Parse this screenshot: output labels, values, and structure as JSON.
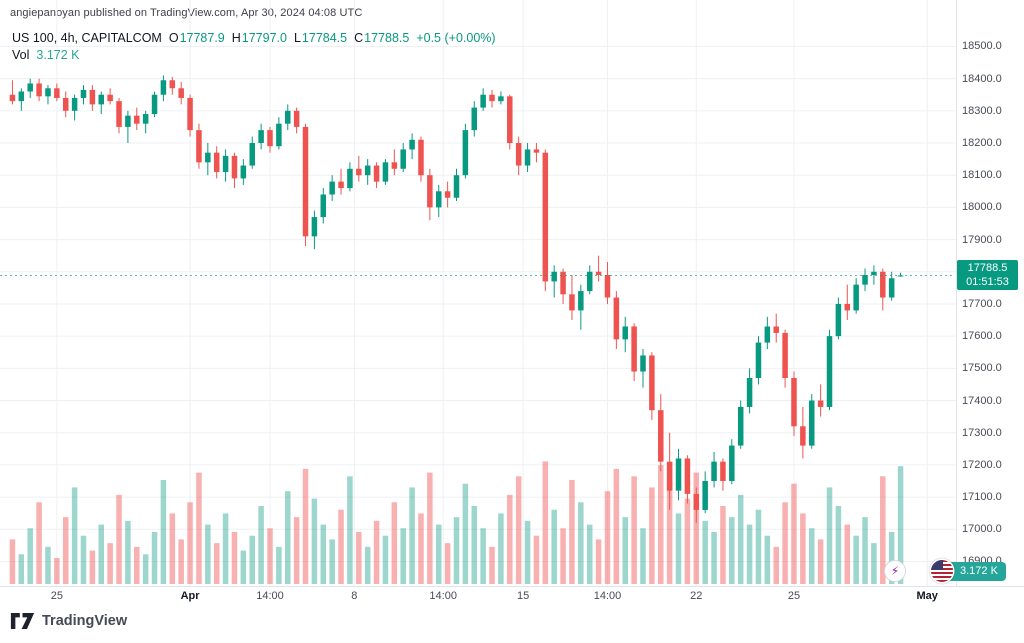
{
  "attribution": "angiepanoyan published on TradingView.com, Apr 30, 2024 04:08 UTC",
  "legend": {
    "symbol": "US 100, 4h, CAPITALCOM",
    "o_label": "O",
    "o_value": "17787.9",
    "h_label": "H",
    "h_value": "17797.0",
    "l_label": "L",
    "l_value": "17784.5",
    "c_label": "C",
    "c_value": "17788.5",
    "change": "+0.5 (+0.00%)",
    "vol_label": "Vol",
    "vol_value": "3.172 K"
  },
  "last_price_badge": {
    "price": "17788.5",
    "countdown": "01:51:53"
  },
  "volume_badge_value": "3.172 K",
  "footer": {
    "brand": "TradingView"
  },
  "icons": {
    "lightning": "⚡"
  },
  "colors": {
    "up": "#089981",
    "down": "#ef5350",
    "vol_up": "rgba(8,153,129,0.40)",
    "vol_down": "rgba(239,83,80,0.45)",
    "grid": "#eef0f4",
    "axis_border": "#e0e3eb",
    "badge_green": "#089981",
    "badge_teal": "#26a69a",
    "purple": "#8e24aa",
    "text_dark": "#131722"
  },
  "chart_data": {
    "type": "candlestick",
    "title": "US 100, 4h, CAPITALCOM",
    "interval": "4h",
    "last_price": 17788.5,
    "last_volume_k": 3.172,
    "ylim": [
      16830,
      18520
    ],
    "grid": true,
    "price_gridlines": [
      18500,
      18400,
      18300,
      18200,
      18100,
      18000,
      17900,
      17800,
      17700,
      17600,
      17500,
      17400,
      17300,
      17200,
      17100,
      17000,
      16900
    ],
    "time_ticks": [
      {
        "label": "25",
        "index": 5,
        "bold": false
      },
      {
        "label": "Apr",
        "index": 20,
        "bold": true
      },
      {
        "label": "14:00",
        "index": 29,
        "bold": false
      },
      {
        "label": "8",
        "index": 38.5,
        "bold": false
      },
      {
        "label": "14:00",
        "index": 48.5,
        "bold": false
      },
      {
        "label": "15",
        "index": 57.5,
        "bold": false
      },
      {
        "label": "14:00",
        "index": 67,
        "bold": false
      },
      {
        "label": "22",
        "index": 77,
        "bold": false
      },
      {
        "label": "25",
        "index": 88,
        "bold": false
      },
      {
        "label": "May",
        "index": 103,
        "bold": true
      }
    ],
    "columns": [
      "open",
      "high",
      "low",
      "close",
      "volume_k"
    ],
    "candles": [
      [
        18350,
        18395,
        18320,
        18330,
        1.2
      ],
      [
        18330,
        18370,
        18300,
        18360,
        0.8
      ],
      [
        18360,
        18400,
        18340,
        18385,
        1.5
      ],
      [
        18385,
        18400,
        18330,
        18345,
        2.2
      ],
      [
        18345,
        18380,
        18320,
        18370,
        1.0
      ],
      [
        18370,
        18385,
        18330,
        18340,
        0.7
      ],
      [
        18340,
        18360,
        18280,
        18300,
        1.8
      ],
      [
        18300,
        18350,
        18270,
        18340,
        2.6
      ],
      [
        18340,
        18380,
        18320,
        18365,
        1.3
      ],
      [
        18365,
        18380,
        18300,
        18320,
        0.9
      ],
      [
        18320,
        18360,
        18290,
        18350,
        1.6
      ],
      [
        18350,
        18370,
        18320,
        18330,
        1.1
      ],
      [
        18330,
        18340,
        18230,
        18250,
        2.4
      ],
      [
        18250,
        18300,
        18200,
        18285,
        1.7
      ],
      [
        18285,
        18310,
        18240,
        18260,
        1.0
      ],
      [
        18260,
        18300,
        18230,
        18290,
        0.8
      ],
      [
        18290,
        18360,
        18280,
        18350,
        1.4
      ],
      [
        18350,
        18410,
        18330,
        18395,
        2.8
      ],
      [
        18395,
        18405,
        18350,
        18370,
        1.9
      ],
      [
        18370,
        18390,
        18320,
        18340,
        1.2
      ],
      [
        18340,
        18350,
        18220,
        18240,
        2.2
      ],
      [
        18240,
        18260,
        18120,
        18140,
        3.0
      ],
      [
        18140,
        18200,
        18100,
        18170,
        1.6
      ],
      [
        18170,
        18190,
        18090,
        18110,
        1.1
      ],
      [
        18110,
        18180,
        18080,
        18160,
        1.9
      ],
      [
        18160,
        18170,
        18060,
        18090,
        1.4
      ],
      [
        18090,
        18150,
        18070,
        18130,
        0.9
      ],
      [
        18130,
        18220,
        18120,
        18200,
        1.3
      ],
      [
        18200,
        18260,
        18180,
        18240,
        2.1
      ],
      [
        18240,
        18250,
        18170,
        18190,
        1.5
      ],
      [
        18190,
        18280,
        18180,
        18260,
        1.0
      ],
      [
        18260,
        18320,
        18240,
        18300,
        2.5
      ],
      [
        18300,
        18310,
        18230,
        18250,
        1.8
      ],
      [
        18250,
        18260,
        17880,
        17910,
        3.1
      ],
      [
        17910,
        17990,
        17870,
        17970,
        2.3
      ],
      [
        17970,
        18060,
        17950,
        18040,
        1.6
      ],
      [
        18040,
        18100,
        18020,
        18080,
        1.2
      ],
      [
        18080,
        18120,
        18040,
        18060,
        2.0
      ],
      [
        18060,
        18140,
        18050,
        18120,
        2.9
      ],
      [
        18120,
        18160,
        18080,
        18100,
        1.4
      ],
      [
        18100,
        18150,
        18070,
        18130,
        1.0
      ],
      [
        18130,
        18140,
        18060,
        18080,
        1.7
      ],
      [
        18080,
        18150,
        18070,
        18140,
        1.3
      ],
      [
        18140,
        18180,
        18100,
        18120,
        2.2
      ],
      [
        18120,
        18200,
        18110,
        18180,
        1.5
      ],
      [
        18180,
        18230,
        18150,
        18210,
        2.6
      ],
      [
        18210,
        18220,
        18080,
        18100,
        1.9
      ],
      [
        18100,
        18120,
        17960,
        18000,
        3.0
      ],
      [
        18000,
        18070,
        17970,
        18050,
        1.6
      ],
      [
        18050,
        18080,
        18000,
        18030,
        1.1
      ],
      [
        18030,
        18120,
        18020,
        18100,
        1.8
      ],
      [
        18100,
        18260,
        18090,
        18240,
        2.7
      ],
      [
        18240,
        18330,
        18220,
        18310,
        2.1
      ],
      [
        18310,
        18370,
        18300,
        18350,
        1.5
      ],
      [
        18350,
        18365,
        18310,
        18330,
        1.0
      ],
      [
        18330,
        18360,
        18320,
        18345,
        1.9
      ],
      [
        18345,
        18350,
        18180,
        18200,
        2.4
      ],
      [
        18200,
        18220,
        18100,
        18130,
        2.9
      ],
      [
        18130,
        18200,
        18110,
        18180,
        1.7
      ],
      [
        18180,
        18200,
        18140,
        18170,
        1.3
      ],
      [
        18170,
        18180,
        17740,
        17770,
        3.3
      ],
      [
        17770,
        17820,
        17720,
        17800,
        2.0
      ],
      [
        17800,
        17810,
        17700,
        17730,
        1.5
      ],
      [
        17730,
        17790,
        17650,
        17680,
        2.8
      ],
      [
        17680,
        17760,
        17620,
        17740,
        2.2
      ],
      [
        17740,
        17820,
        17730,
        17800,
        1.6
      ],
      [
        17800,
        17850,
        17770,
        17790,
        1.2
      ],
      [
        17790,
        17830,
        17700,
        17720,
        2.5
      ],
      [
        17720,
        17740,
        17560,
        17590,
        3.1
      ],
      [
        17590,
        17660,
        17550,
        17630,
        1.8
      ],
      [
        17630,
        17640,
        17460,
        17490,
        2.9
      ],
      [
        17490,
        17560,
        17440,
        17540,
        1.5
      ],
      [
        17540,
        17550,
        17340,
        17370,
        2.6
      ],
      [
        17370,
        17420,
        17180,
        17210,
        3.2
      ],
      [
        17210,
        17300,
        17060,
        17120,
        2.8
      ],
      [
        17120,
        17250,
        17090,
        17220,
        1.9
      ],
      [
        17220,
        17230,
        17080,
        17110,
        2.3
      ],
      [
        17110,
        17130,
        17020,
        17060,
        3.0
      ],
      [
        17060,
        17180,
        17050,
        17150,
        1.7
      ],
      [
        17150,
        17240,
        17130,
        17210,
        1.4
      ],
      [
        17210,
        17220,
        17120,
        17150,
        2.1
      ],
      [
        17150,
        17280,
        17140,
        17260,
        1.8
      ],
      [
        17260,
        17400,
        17250,
        17380,
        2.4
      ],
      [
        17380,
        17500,
        17360,
        17470,
        1.6
      ],
      [
        17470,
        17600,
        17450,
        17580,
        2.0
      ],
      [
        17580,
        17660,
        17560,
        17630,
        1.3
      ],
      [
        17630,
        17670,
        17580,
        17610,
        1.0
      ],
      [
        17610,
        17620,
        17440,
        17470,
        2.2
      ],
      [
        17470,
        17490,
        17290,
        17320,
        2.7
      ],
      [
        17320,
        17380,
        17220,
        17260,
        1.9
      ],
      [
        17260,
        17420,
        17250,
        17400,
        1.5
      ],
      [
        17400,
        17450,
        17350,
        17380,
        1.2
      ],
      [
        17380,
        17620,
        17370,
        17600,
        2.6
      ],
      [
        17600,
        17720,
        17590,
        17700,
        2.1
      ],
      [
        17700,
        17760,
        17650,
        17680,
        1.6
      ],
      [
        17680,
        17780,
        17670,
        17760,
        1.3
      ],
      [
        17760,
        17810,
        17740,
        17790,
        1.8
      ],
      [
        17790,
        17820,
        17760,
        17800,
        1.1
      ],
      [
        17800,
        17810,
        17680,
        17720,
        2.9
      ],
      [
        17720,
        17800,
        17710,
        17780,
        1.4
      ],
      [
        17787.9,
        17797.0,
        17784.5,
        17788.5,
        3.172
      ]
    ]
  }
}
